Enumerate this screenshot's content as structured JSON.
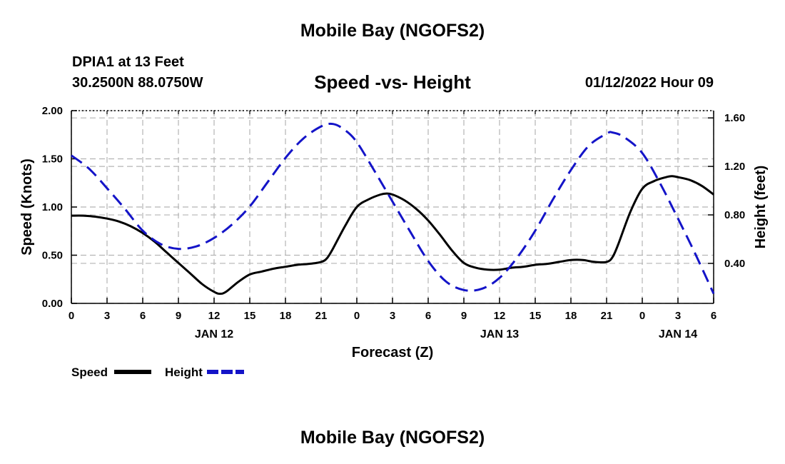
{
  "header": {
    "title": "Mobile Bay (NGOFS2)",
    "station": "DPIA1 at 13 Feet",
    "coords": "30.2500N  88.0750W",
    "chart_title": "Speed -vs- Height",
    "datetime": "01/12/2022 Hour 09"
  },
  "footer": {
    "title": "Mobile Bay (NGOFS2)"
  },
  "colors": {
    "speed": "#000000",
    "height": "#1414c8",
    "grid": "#b4b4b4"
  },
  "chart_data": {
    "type": "line",
    "xlabel": "Forecast (Z)",
    "ylabel": "Speed (Knots)",
    "y2label": "Height (feet)",
    "x_range": [
      0,
      54
    ],
    "x_ticks": [
      {
        "x": 0,
        "label": "0"
      },
      {
        "x": 3,
        "label": "3"
      },
      {
        "x": 6,
        "label": "6"
      },
      {
        "x": 9,
        "label": "9"
      },
      {
        "x": 12,
        "label": "12"
      },
      {
        "x": 15,
        "label": "15"
      },
      {
        "x": 18,
        "label": "18"
      },
      {
        "x": 21,
        "label": "21"
      },
      {
        "x": 24,
        "label": "0"
      },
      {
        "x": 27,
        "label": "3"
      },
      {
        "x": 30,
        "label": "6"
      },
      {
        "x": 33,
        "label": "9"
      },
      {
        "x": 36,
        "label": "12"
      },
      {
        "x": 39,
        "label": "15"
      },
      {
        "x": 42,
        "label": "18"
      },
      {
        "x": 45,
        "label": "21"
      },
      {
        "x": 48,
        "label": "0"
      },
      {
        "x": 51,
        "label": "3"
      },
      {
        "x": 54,
        "label": "6"
      }
    ],
    "date_labels": [
      {
        "x": 12,
        "label": "JAN 12"
      },
      {
        "x": 36,
        "label": "JAN 13"
      },
      {
        "x": 51,
        "label": "JAN 14"
      }
    ],
    "ylim": [
      0,
      2.0
    ],
    "y_ticks": [
      "0.00",
      "0.50",
      "1.00",
      "1.50",
      "2.00"
    ],
    "y2lim": [
      0.07,
      1.66
    ],
    "y2_ticks": [
      "0.40",
      "0.80",
      "1.20",
      "1.60"
    ],
    "grid": true,
    "legend_position": "bottom-left",
    "series": [
      {
        "name": "Speed",
        "axis": "left",
        "style": "solid",
        "x": [
          0,
          1,
          2,
          3,
          4,
          5,
          6,
          7,
          8,
          9,
          10,
          11,
          12,
          12.5,
          13,
          14,
          15,
          16,
          17,
          18,
          19,
          20,
          21,
          21.5,
          22,
          23,
          24,
          25,
          26,
          26.5,
          27,
          28,
          29,
          30,
          31,
          32,
          33,
          34,
          35,
          36,
          37,
          38,
          39,
          40,
          41,
          42,
          43,
          44,
          45,
          45.5,
          46,
          47,
          48,
          49,
          50,
          50.5,
          51,
          52,
          53,
          54
        ],
        "y": [
          0.91,
          0.91,
          0.9,
          0.88,
          0.85,
          0.8,
          0.73,
          0.64,
          0.53,
          0.42,
          0.31,
          0.2,
          0.12,
          0.1,
          0.12,
          0.22,
          0.3,
          0.33,
          0.36,
          0.38,
          0.4,
          0.41,
          0.43,
          0.47,
          0.57,
          0.8,
          1.0,
          1.08,
          1.13,
          1.14,
          1.13,
          1.07,
          0.98,
          0.86,
          0.71,
          0.55,
          0.42,
          0.37,
          0.35,
          0.35,
          0.37,
          0.38,
          0.4,
          0.41,
          0.43,
          0.45,
          0.45,
          0.43,
          0.43,
          0.48,
          0.62,
          0.95,
          1.19,
          1.27,
          1.31,
          1.32,
          1.31,
          1.28,
          1.22,
          1.13
        ]
      },
      {
        "name": "Height",
        "axis": "right",
        "style": "dashed",
        "x": [
          0,
          1.5,
          3,
          4.5,
          6,
          7.5,
          9,
          10.5,
          12,
          13.5,
          15,
          16.5,
          18,
          19.5,
          21,
          22,
          23,
          24,
          25.5,
          27,
          28.5,
          30,
          31.5,
          33,
          34.5,
          36,
          37.5,
          39,
          40.5,
          42,
          43.5,
          45,
          45.5,
          46.5,
          48,
          49.5,
          51,
          52.5,
          54
        ],
        "y": [
          1.29,
          1.18,
          1.02,
          0.85,
          0.67,
          0.56,
          0.52,
          0.54,
          0.61,
          0.72,
          0.87,
          1.07,
          1.27,
          1.43,
          1.53,
          1.55,
          1.5,
          1.4,
          1.16,
          0.91,
          0.66,
          0.42,
          0.25,
          0.18,
          0.19,
          0.28,
          0.45,
          0.67,
          0.93,
          1.17,
          1.37,
          1.47,
          1.48,
          1.44,
          1.31,
          1.06,
          0.77,
          0.47,
          0.15
        ]
      }
    ]
  }
}
